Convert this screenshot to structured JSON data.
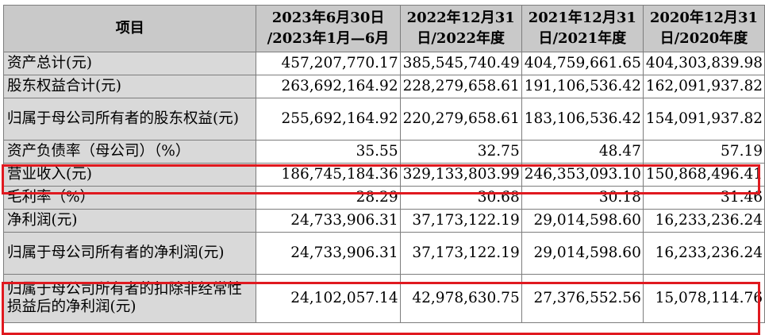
{
  "header": {
    "item": "项目",
    "cols": [
      "2023年6月30日/2023年1月—6月",
      "2022年12月31日/2022年度",
      "2021年12月31日/2021年度",
      "2020年12月31日/2020年度"
    ],
    "cols_lines": [
      [
        "2023年6月30日",
        "/2023年1月—6月"
      ],
      [
        "2022年12月31",
        "日/2022年度"
      ],
      [
        "2021年12月31",
        "日/2021年度"
      ],
      [
        "2020年12月31",
        "日/2020年度"
      ]
    ]
  },
  "rows": [
    {
      "label": "资产总计(元)",
      "values": [
        "457,207,770.17",
        "385,545,740.49",
        "404,759,661.65",
        "404,303,839.98"
      ]
    },
    {
      "label": "股东权益合计(元)",
      "values": [
        "263,692,164.92",
        "228,279,658.61",
        "191,106,536.42",
        "162,091,937.82"
      ]
    },
    {
      "label": "归属于母公司所有者的股东权益(元)",
      "values": [
        "255,692,164.92",
        "220,279,658.61",
        "183,106,536.42",
        "154,091,937.82"
      ]
    },
    {
      "label": "资产负债率（母公司）（%）",
      "values": [
        "35.55",
        "32.75",
        "48.47",
        "57.19"
      ]
    },
    {
      "label": "营业收入(元)",
      "values": [
        "186,745,184.36",
        "329,133,803.99",
        "246,353,093.10",
        "150,868,496.41"
      ],
      "highlighted": true
    },
    {
      "label": "毛利率（%）",
      "values": [
        "28.29",
        "30.68",
        "30.18",
        "31.46"
      ]
    },
    {
      "label": "净利润(元)",
      "values": [
        "24,733,906.31",
        "37,173,122.19",
        "29,014,598.60",
        "16,233,236.24"
      ]
    },
    {
      "label": "归属于母公司所有者的净利润(元)",
      "values": [
        "24,733,906.31",
        "37,173,122.19",
        "29,014,598.60",
        "16,233,236.24"
      ]
    },
    {
      "label": "归属于母公司所有者的扣除非经常性损益后的净利润(元)",
      "values": [
        "24,102,057.14",
        "42,978,630.75",
        "27,376,552.56",
        "15,078,114.76"
      ],
      "highlighted": true
    }
  ],
  "highlight_color": "#e0191f",
  "header_bg": "#c9c9c9",
  "label_bg": "#d9d9d9"
}
